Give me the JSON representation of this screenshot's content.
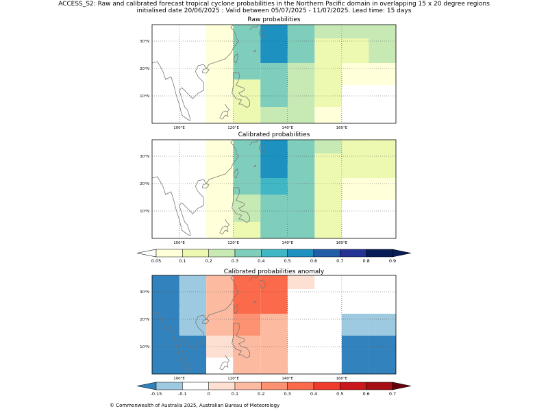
{
  "header": {
    "line1": "ACCESS_S2: Raw and calibrated forecast tropical cyclone probabilities in the Northern Pacific domain in overlapping 15 x 20 degree regions",
    "line2": "initialised date 20/06/2025 :  Valid between 05/07/2025 - 11/07/2025. Lead time: 15 days"
  },
  "footer": "© Commonwealth of Australia 2025, Australian Bureau of Meteorology",
  "chart_data": [
    {
      "type": "heatmap",
      "title": "Raw probabilities",
      "x_ticks": [
        "100°E",
        "120°E",
        "140°E",
        "160°E"
      ],
      "y_ticks": [
        "10°N",
        "20°N",
        "30°N"
      ],
      "xlim": [
        90,
        180
      ],
      "ylim": [
        0,
        36
      ],
      "grid": true,
      "bins": [
        0.05,
        0.1,
        0.2,
        0.3,
        0.4,
        0.5,
        0.6,
        0.7,
        0.8,
        0.9
      ],
      "cells": [
        {
          "lon": [
            110,
            120
          ],
          "lat": [
            28,
            36
          ],
          "value": 0.07
        },
        {
          "lon": [
            110,
            120
          ],
          "lat": [
            0,
            28
          ],
          "value": 0.07
        },
        {
          "lon": [
            120,
            130
          ],
          "lat": [
            16,
            36
          ],
          "value": 0.35
        },
        {
          "lon": [
            120,
            130
          ],
          "lat": [
            6,
            16
          ],
          "value": 0.12
        },
        {
          "lon": [
            120,
            130
          ],
          "lat": [
            0,
            6
          ],
          "value": 0.12
        },
        {
          "lon": [
            130,
            140
          ],
          "lat": [
            22,
            36
          ],
          "value": 0.55
        },
        {
          "lon": [
            130,
            140
          ],
          "lat": [
            16,
            22
          ],
          "value": 0.35
        },
        {
          "lon": [
            130,
            140
          ],
          "lat": [
            6,
            16
          ],
          "value": 0.35
        },
        {
          "lon": [
            130,
            140
          ],
          "lat": [
            0,
            6
          ],
          "value": 0.25
        },
        {
          "lon": [
            140,
            150
          ],
          "lat": [
            31,
            36
          ],
          "value": 0.35
        },
        {
          "lon": [
            140,
            150
          ],
          "lat": [
            22,
            31
          ],
          "value": 0.35
        },
        {
          "lon": [
            140,
            150
          ],
          "lat": [
            6,
            22
          ],
          "value": 0.25
        },
        {
          "lon": [
            140,
            150
          ],
          "lat": [
            0,
            6
          ],
          "value": 0.25
        },
        {
          "lon": [
            150,
            160
          ],
          "lat": [
            31,
            36
          ],
          "value": 0.25
        },
        {
          "lon": [
            150,
            160
          ],
          "lat": [
            14,
            31
          ],
          "value": 0.15
        },
        {
          "lon": [
            150,
            160
          ],
          "lat": [
            6,
            14
          ],
          "value": 0.15
        },
        {
          "lon": [
            150,
            160
          ],
          "lat": [
            0,
            6
          ],
          "value": 0.07
        },
        {
          "lon": [
            160,
            170
          ],
          "lat": [
            31,
            36
          ],
          "value": 0.25
        },
        {
          "lon": [
            160,
            170
          ],
          "lat": [
            22,
            31
          ],
          "value": 0.15
        },
        {
          "lon": [
            160,
            170
          ],
          "lat": [
            14,
            22
          ],
          "value": 0.07
        },
        {
          "lon": [
            170,
            180
          ],
          "lat": [
            31,
            36
          ],
          "value": 0.25
        },
        {
          "lon": [
            170,
            180
          ],
          "lat": [
            22,
            31
          ],
          "value": 0.25
        },
        {
          "lon": [
            170,
            180
          ],
          "lat": [
            14,
            22
          ],
          "value": 0.07
        },
        {
          "lon": [
            180,
            190
          ],
          "lat": [
            31,
            36
          ],
          "value": 0.25
        },
        {
          "lon": [
            180,
            190
          ],
          "lat": [
            22,
            31
          ],
          "value": 0.15
        },
        {
          "lon": [
            180,
            190
          ],
          "lat": [
            14,
            22
          ],
          "value": 0.07
        }
      ]
    },
    {
      "type": "heatmap",
      "title": "Calibrated probabilities",
      "x_ticks": [
        "100°E",
        "120°E",
        "140°E",
        "160°E"
      ],
      "y_ticks": [
        "10°N",
        "20°N",
        "30°N"
      ],
      "xlim": [
        90,
        180
      ],
      "ylim": [
        0,
        36
      ],
      "grid": true,
      "bins": [
        0.05,
        0.1,
        0.2,
        0.3,
        0.4,
        0.5,
        0.6,
        0.7,
        0.8,
        0.9
      ],
      "cells": [
        {
          "lon": [
            110,
            120
          ],
          "lat": [
            0,
            36
          ],
          "value": 0.07
        },
        {
          "lon": [
            120,
            130
          ],
          "lat": [
            16,
            36
          ],
          "value": 0.35
        },
        {
          "lon": [
            120,
            130
          ],
          "lat": [
            6,
            16
          ],
          "value": 0.25
        },
        {
          "lon": [
            120,
            130
          ],
          "lat": [
            0,
            6
          ],
          "value": 0.12
        },
        {
          "lon": [
            130,
            140
          ],
          "lat": [
            22,
            36
          ],
          "value": 0.55
        },
        {
          "lon": [
            130,
            140
          ],
          "lat": [
            16,
            22
          ],
          "value": 0.45
        },
        {
          "lon": [
            130,
            140
          ],
          "lat": [
            6,
            16
          ],
          "value": 0.35
        },
        {
          "lon": [
            130,
            140
          ],
          "lat": [
            0,
            6
          ],
          "value": 0.35
        },
        {
          "lon": [
            140,
            150
          ],
          "lat": [
            31,
            36
          ],
          "value": 0.35
        },
        {
          "lon": [
            140,
            150
          ],
          "lat": [
            22,
            31
          ],
          "value": 0.35
        },
        {
          "lon": [
            140,
            150
          ],
          "lat": [
            16,
            22
          ],
          "value": 0.35
        },
        {
          "lon": [
            140,
            150
          ],
          "lat": [
            6,
            16
          ],
          "value": 0.35
        },
        {
          "lon": [
            140,
            150
          ],
          "lat": [
            0,
            6
          ],
          "value": 0.35
        },
        {
          "lon": [
            150,
            160
          ],
          "lat": [
            31,
            36
          ],
          "value": 0.25
        },
        {
          "lon": [
            150,
            160
          ],
          "lat": [
            22,
            31
          ],
          "value": 0.15
        },
        {
          "lon": [
            150,
            160
          ],
          "lat": [
            0,
            22
          ],
          "value": 0.15
        },
        {
          "lon": [
            160,
            170
          ],
          "lat": [
            22,
            36
          ],
          "value": 0.15
        },
        {
          "lon": [
            160,
            170
          ],
          "lat": [
            14,
            22
          ],
          "value": 0.07
        },
        {
          "lon": [
            170,
            180
          ],
          "lat": [
            22,
            36
          ],
          "value": 0.15
        },
        {
          "lon": [
            170,
            180
          ],
          "lat": [
            14,
            22
          ],
          "value": 0.07
        },
        {
          "lon": [
            180,
            190
          ],
          "lat": [
            22,
            36
          ],
          "value": 0.15
        },
        {
          "lon": [
            180,
            190
          ],
          "lat": [
            14,
            22
          ],
          "value": 0.07
        }
      ]
    },
    {
      "type": "heatmap",
      "title": "Calibrated probabilities anomaly",
      "x_ticks": [
        "100°E",
        "120°E",
        "140°E",
        "160°E"
      ],
      "y_ticks": [
        "10°N",
        "20°N",
        "30°N"
      ],
      "xlim": [
        90,
        180
      ],
      "ylim": [
        0,
        36
      ],
      "grid": true,
      "bins": [
        -0.15,
        -0.1,
        0.0,
        0.1,
        0.2,
        0.3,
        0.4,
        0.5,
        0.6,
        0.7
      ],
      "cells": [
        {
          "lon": [
            90,
            100
          ],
          "lat": [
            0,
            36
          ],
          "value": -0.2
        },
        {
          "lon": [
            100,
            110
          ],
          "lat": [
            14,
            36
          ],
          "value": -0.12
        },
        {
          "lon": [
            100,
            110
          ],
          "lat": [
            0,
            14
          ],
          "value": -0.2
        },
        {
          "lon": [
            110,
            120
          ],
          "lat": [
            14,
            36
          ],
          "value": 0.15
        },
        {
          "lon": [
            110,
            120
          ],
          "lat": [
            6,
            14
          ],
          "value": 0.05
        },
        {
          "lon": [
            110,
            120
          ],
          "lat": [
            0,
            6
          ],
          "value": -0.05
        },
        {
          "lon": [
            120,
            130
          ],
          "lat": [
            22,
            36
          ],
          "value": 0.35
        },
        {
          "lon": [
            120,
            130
          ],
          "lat": [
            14,
            22
          ],
          "value": 0.25
        },
        {
          "lon": [
            120,
            130
          ],
          "lat": [
            6,
            14
          ],
          "value": 0.15
        },
        {
          "lon": [
            120,
            130
          ],
          "lat": [
            0,
            6
          ],
          "value": 0.15
        },
        {
          "lon": [
            130,
            140
          ],
          "lat": [
            31,
            36
          ],
          "value": 0.35
        },
        {
          "lon": [
            130,
            140
          ],
          "lat": [
            22,
            31
          ],
          "value": 0.35
        },
        {
          "lon": [
            130,
            140
          ],
          "lat": [
            0,
            22
          ],
          "value": 0.15
        },
        {
          "lon": [
            140,
            150
          ],
          "lat": [
            31,
            36
          ],
          "value": 0.05
        },
        {
          "lon": [
            140,
            150
          ],
          "lat": [
            0,
            31
          ],
          "value": -0.05
        },
        {
          "lon": [
            150,
            160
          ],
          "lat": [
            14,
            36
          ],
          "value": -0.05
        },
        {
          "lon": [
            150,
            160
          ],
          "lat": [
            0,
            14
          ],
          "value": -0.05
        },
        {
          "lon": [
            160,
            170
          ],
          "lat": [
            22,
            36
          ],
          "value": -0.05
        },
        {
          "lon": [
            160,
            170
          ],
          "lat": [
            14,
            22
          ],
          "value": -0.12
        },
        {
          "lon": [
            160,
            170
          ],
          "lat": [
            0,
            14
          ],
          "value": -0.2
        },
        {
          "lon": [
            170,
            180
          ],
          "lat": [
            22,
            36
          ],
          "value": -0.05
        },
        {
          "lon": [
            170,
            180
          ],
          "lat": [
            14,
            22
          ],
          "value": -0.12
        },
        {
          "lon": [
            170,
            180
          ],
          "lat": [
            0,
            14
          ],
          "value": -0.2
        },
        {
          "lon": [
            180,
            190
          ],
          "lat": [
            22,
            36
          ],
          "value": -0.05
        },
        {
          "lon": [
            180,
            190
          ],
          "lat": [
            14,
            22
          ],
          "value": -0.2
        },
        {
          "lon": [
            180,
            190
          ],
          "lat": [
            0,
            14
          ],
          "value": -0.2
        }
      ]
    }
  ],
  "colorbars": [
    {
      "labels": [
        "0.05",
        "0.1",
        "0.2",
        "0.3",
        "0.4",
        "0.5",
        "0.6",
        "0.7",
        "0.8",
        "0.9"
      ],
      "under_color": "#ffffff",
      "over_color": "#081d58",
      "colors": [
        "#ffffd9",
        "#edf8b1",
        "#c7e9b4",
        "#7fcdbb",
        "#41b6c4",
        "#1d91c0",
        "#225ea8",
        "#253494",
        "#081d58"
      ]
    },
    {
      "labels": [
        "-0.15",
        "-0.1",
        "0",
        "0.1",
        "0.2",
        "0.3",
        "0.4",
        "0.5",
        "0.6",
        "0.7"
      ],
      "under_color": "#3182bd",
      "over_color": "#67000d",
      "colors": [
        "#9ecae1",
        "#ffffff",
        "#fee0d2",
        "#fcbba1",
        "#fc9272",
        "#fb6a4a",
        "#ef3b2c",
        "#cb181d",
        "#a50f15"
      ]
    }
  ]
}
